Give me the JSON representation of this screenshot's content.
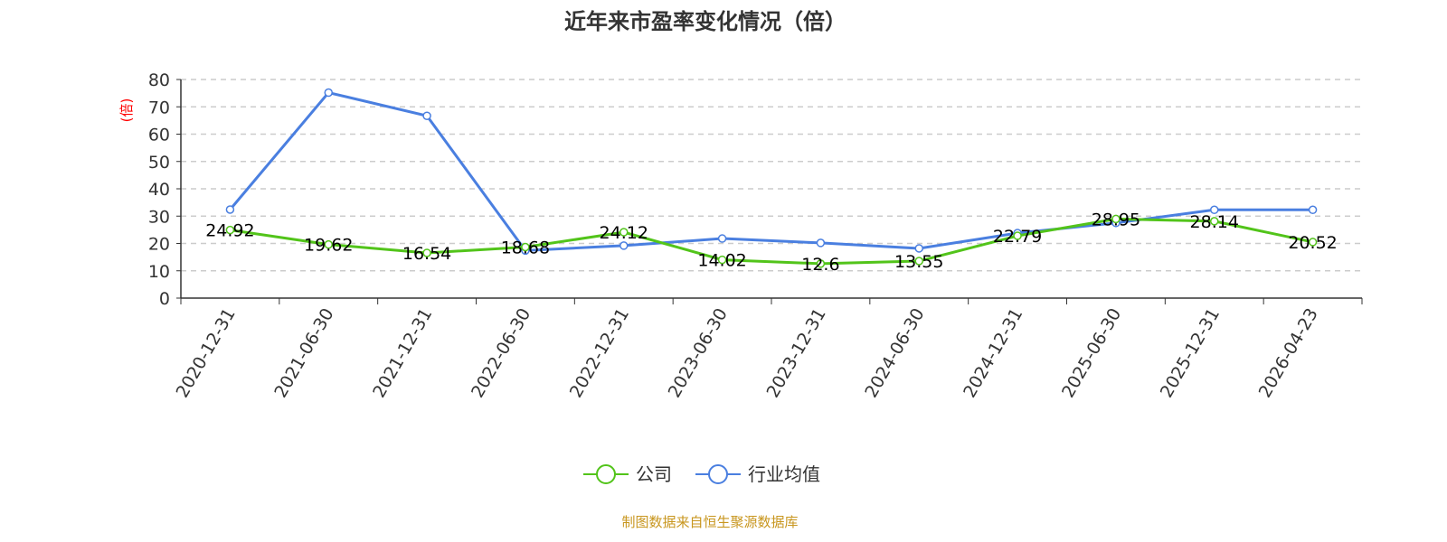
{
  "chart_data": {
    "type": "line",
    "title": "近年来市盈率变化情况（倍）",
    "ylabel": "(倍)",
    "xlabel": "",
    "ylim": [
      0,
      80
    ],
    "yticks": [
      0,
      10,
      20,
      30,
      40,
      50,
      60,
      70,
      80
    ],
    "grid": true,
    "legend_position": "bottom",
    "categories": [
      "2020-12-31",
      "2021-06-30",
      "2021-12-31",
      "2022-06-30",
      "2022-12-31",
      "2023-06-30",
      "2023-12-31",
      "2024-06-30",
      "2024-12-31",
      "2025-06-30",
      "2025-12-31",
      "2026-04-23"
    ],
    "series": [
      {
        "name": "公司",
        "color": "#52c41a",
        "labeled": true,
        "values": [
          24.92,
          19.62,
          16.54,
          18.68,
          24.12,
          14.02,
          12.6,
          13.55,
          22.79,
          28.95,
          28.14,
          20.52
        ]
      },
      {
        "name": "行业均值",
        "color": "#4a7fe0",
        "labeled": false,
        "values": [
          32.4,
          75.2,
          66.7,
          17.4,
          19.2,
          21.8,
          20.2,
          18.2,
          23.8,
          27.5,
          32.3,
          32.3
        ]
      }
    ]
  },
  "source": "制图数据来自恒生聚源数据库"
}
